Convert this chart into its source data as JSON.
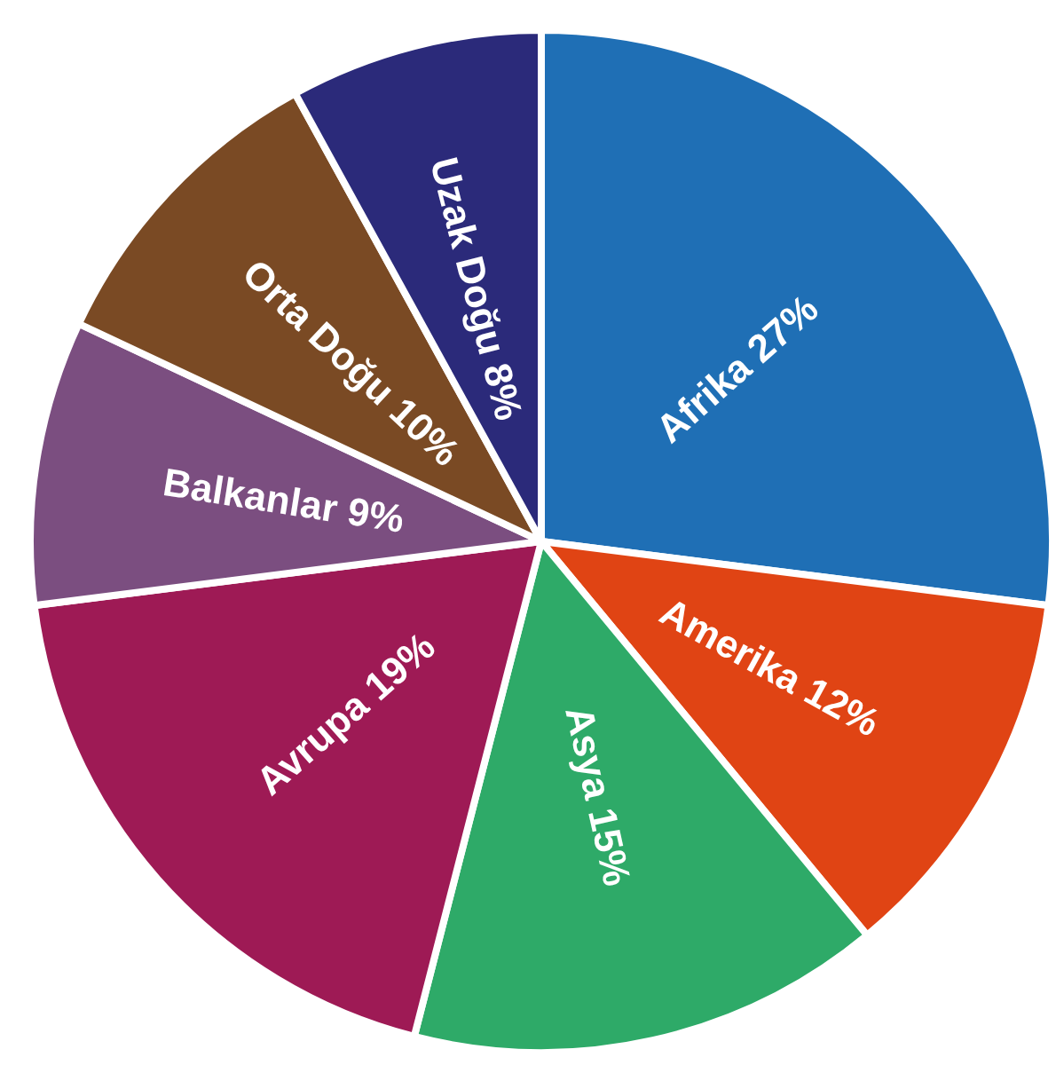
{
  "chart_data": {
    "type": "pie",
    "categories": [
      "Afrika",
      "Amerika",
      "Asya",
      "Avrupa",
      "Balkanlar",
      "Orta Doğu",
      "Uzak Doğu"
    ],
    "values": [
      27,
      12,
      15,
      19,
      9,
      10,
      8
    ],
    "value_labels": [
      "27%",
      "12%",
      "15%",
      "19%",
      "9%",
      "10%",
      "8%"
    ],
    "colors": [
      "#1f6fb5",
      "#e04414",
      "#2eaa68",
      "#9e1a55",
      "#7b4e80",
      "#7a4a24",
      "#2b2a7a"
    ],
    "legend": false
  }
}
